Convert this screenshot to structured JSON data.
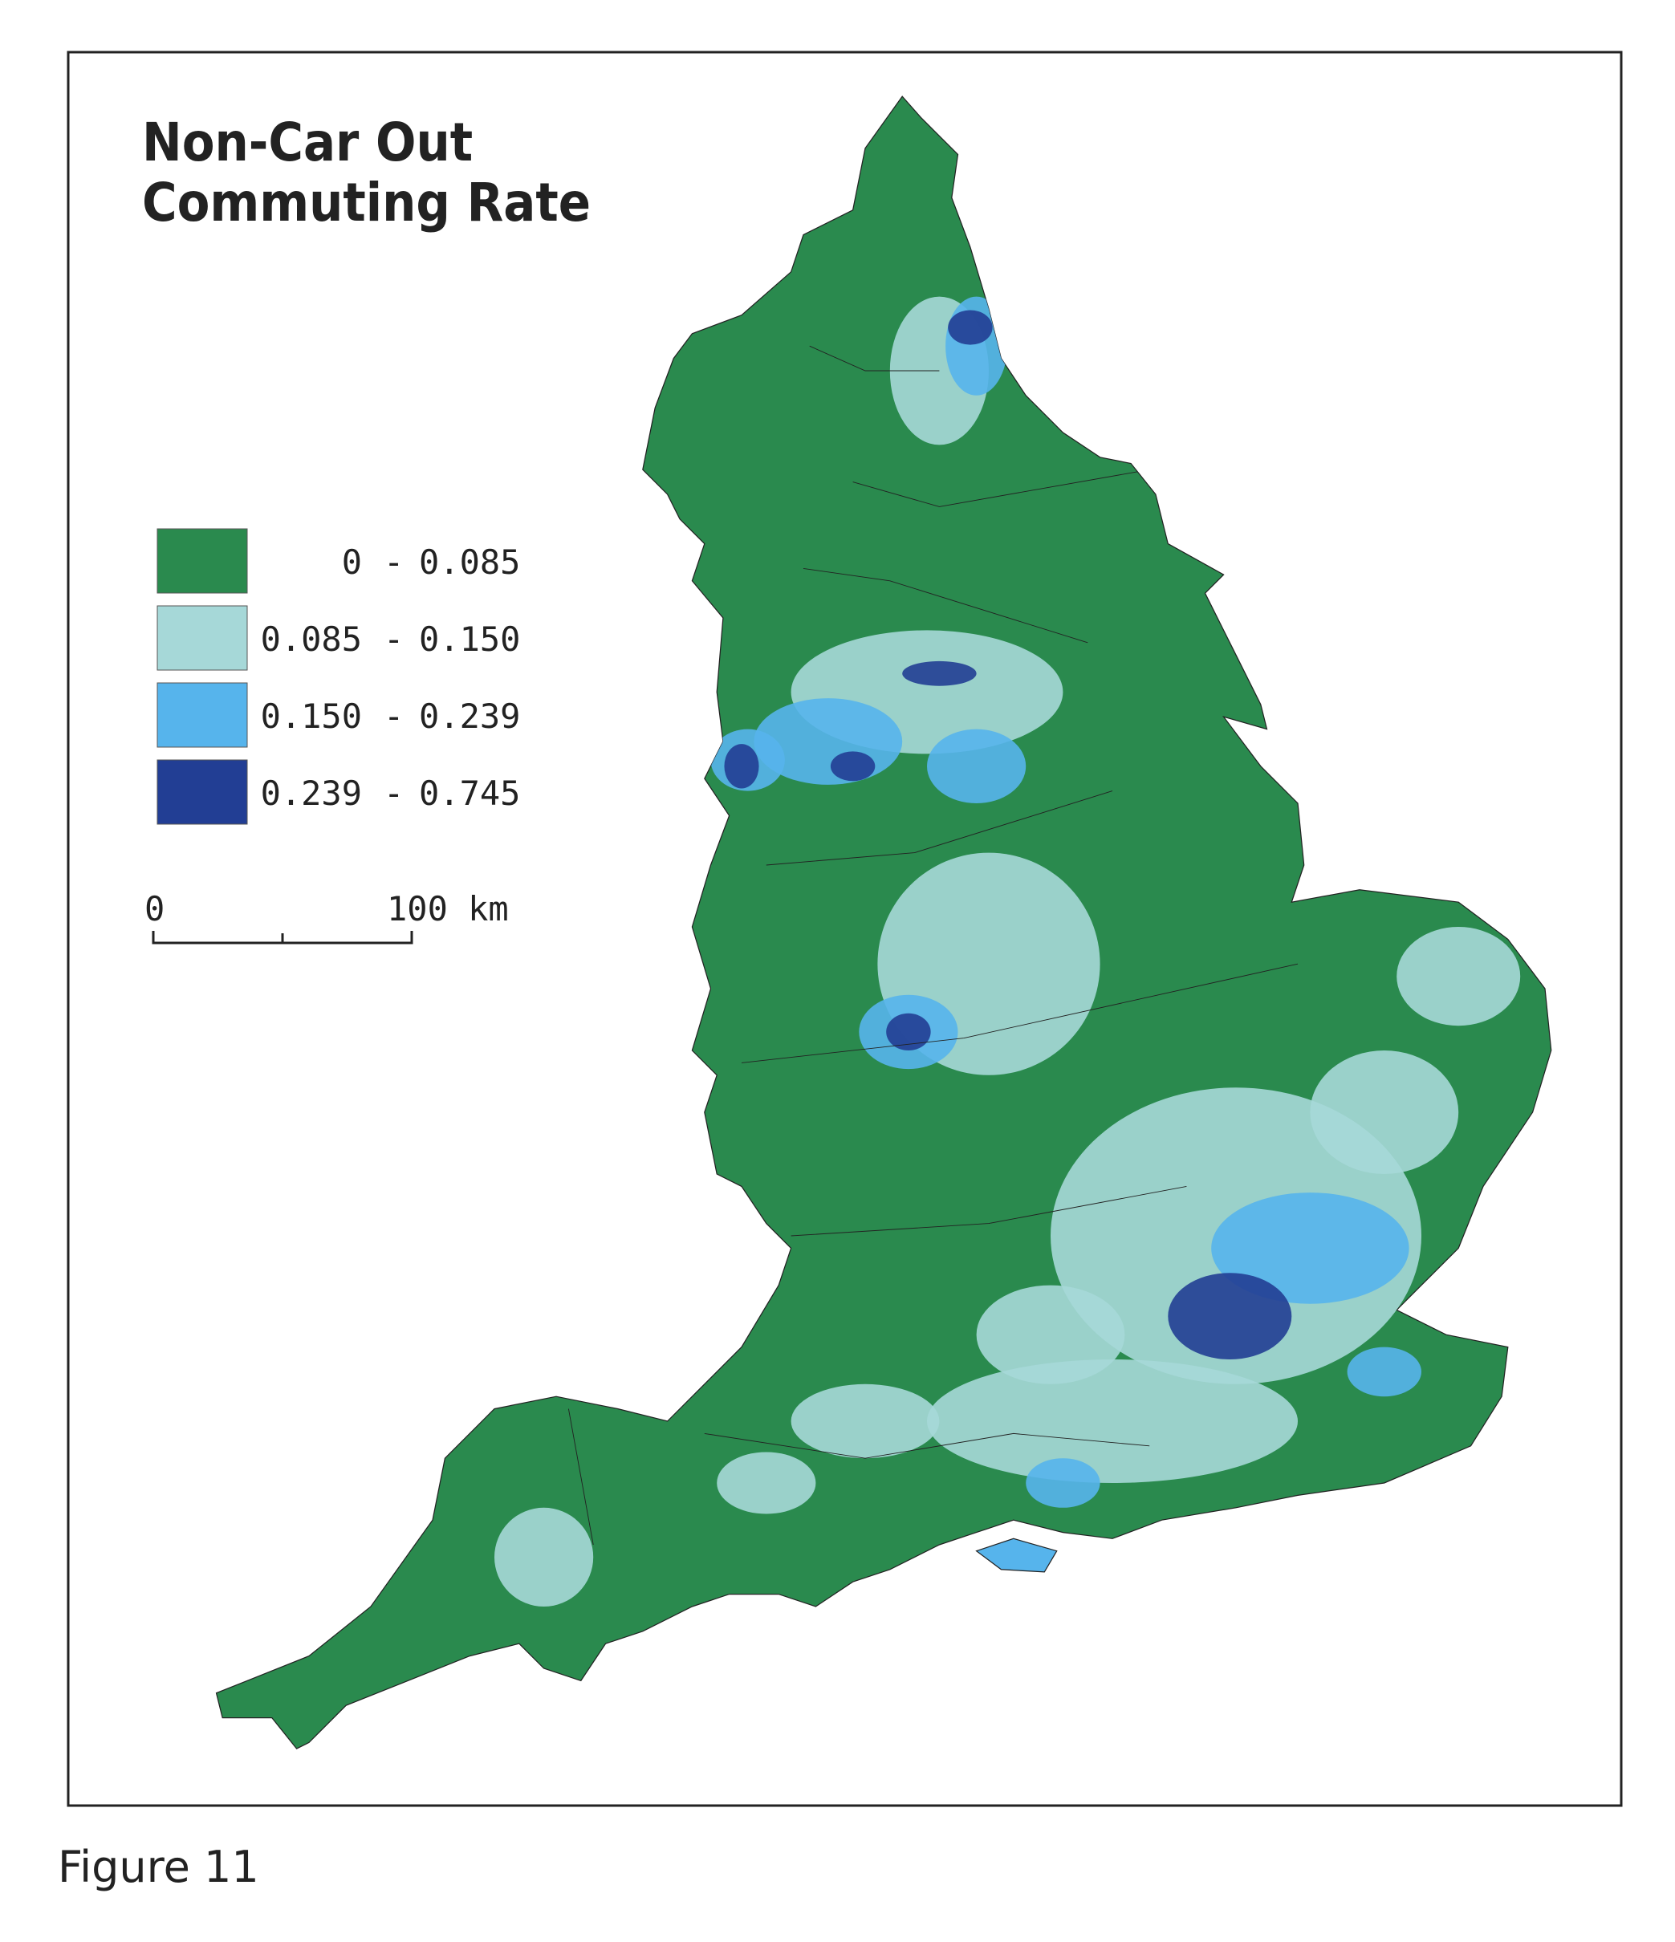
{
  "title": [
    "Non-Car Out",
    "Commuting Rate"
  ],
  "legend": [
    {
      "low": "0",
      "high": "0.085",
      "color": "#2a8a4e"
    },
    {
      "low": "0.085",
      "high": "0.150",
      "color": "#a6d8d8"
    },
    {
      "low": "0.150",
      "high": "0.239",
      "color": "#56b4ec"
    },
    {
      "low": "0.239",
      "high": "0.745",
      "color": "#223e94"
    }
  ],
  "scale_bar": {
    "start": "0",
    "end": "100 km"
  },
  "caption": "Figure 11"
}
